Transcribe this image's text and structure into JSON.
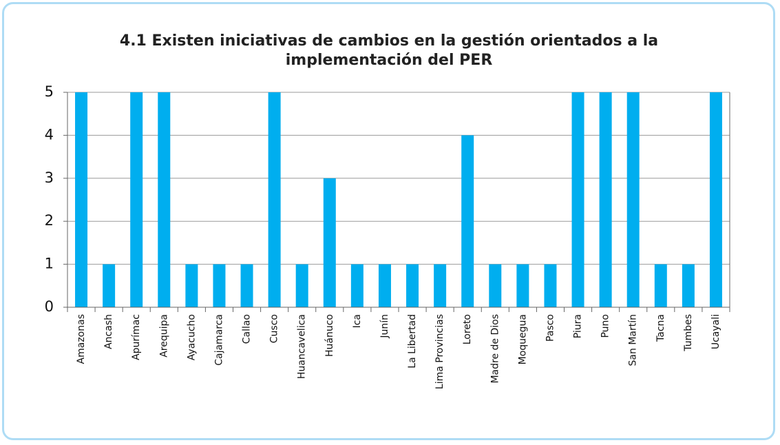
{
  "chart_data": {
    "type": "bar",
    "title": "4.1 Existen iniciativas de cambios en la gestión orientados a la implementación del PER",
    "categories": [
      "Amazonas",
      "Ancash",
      "Apurímac",
      "Arequipa",
      "Ayacucho",
      "Cajamarca",
      "Callao",
      "Cusco",
      "Huancavelica",
      "Huánuco",
      "Ica",
      "Junín",
      "La Libertad",
      "Lima Provincias",
      "Loreto",
      "Madre de Dios",
      "Moquegua",
      "Pasco",
      "Piura",
      "Puno",
      "San Martín",
      "Tacna",
      "Tumbes",
      "Ucayali"
    ],
    "values": [
      5,
      1,
      5,
      5,
      1,
      1,
      1,
      5,
      1,
      3,
      1,
      1,
      1,
      1,
      4,
      1,
      1,
      1,
      5,
      5,
      5,
      1,
      1,
      5
    ],
    "color": "#00aeef",
    "ylim": [
      0,
      5
    ],
    "yticks": [
      0,
      1,
      2,
      3,
      4,
      5
    ],
    "grid": true
  }
}
